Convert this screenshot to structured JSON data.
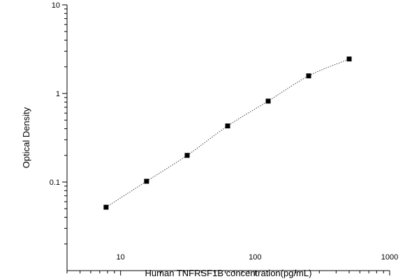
{
  "chart_data": {
    "type": "scatter",
    "xlabel": "Human TNFRSF1B concentration(pg/mL)",
    "ylabel": "Optical Density",
    "x_scale": "log",
    "y_scale": "log",
    "xlim": [
      4.0,
      1000
    ],
    "ylim": [
      0.01,
      10
    ],
    "x_ticks": [
      10,
      100,
      1000
    ],
    "x_tick_labels": [
      "10",
      "100",
      "1000"
    ],
    "y_ticks": [
      0.1,
      1,
      10
    ],
    "y_tick_labels": [
      "0.1",
      "1",
      "10"
    ],
    "grid": false,
    "legend": "none",
    "series": [
      {
        "x": [
          7.8,
          15.6,
          31.25,
          62.5,
          125,
          250,
          500
        ],
        "y": [
          0.052,
          0.102,
          0.2,
          0.43,
          0.82,
          1.58,
          2.45
        ]
      }
    ],
    "fit_curve": "dotted 4-parameter logistic fit through the points",
    "colors": {
      "axis": "#000000",
      "marker": "#000000",
      "curve": "#444444"
    }
  }
}
